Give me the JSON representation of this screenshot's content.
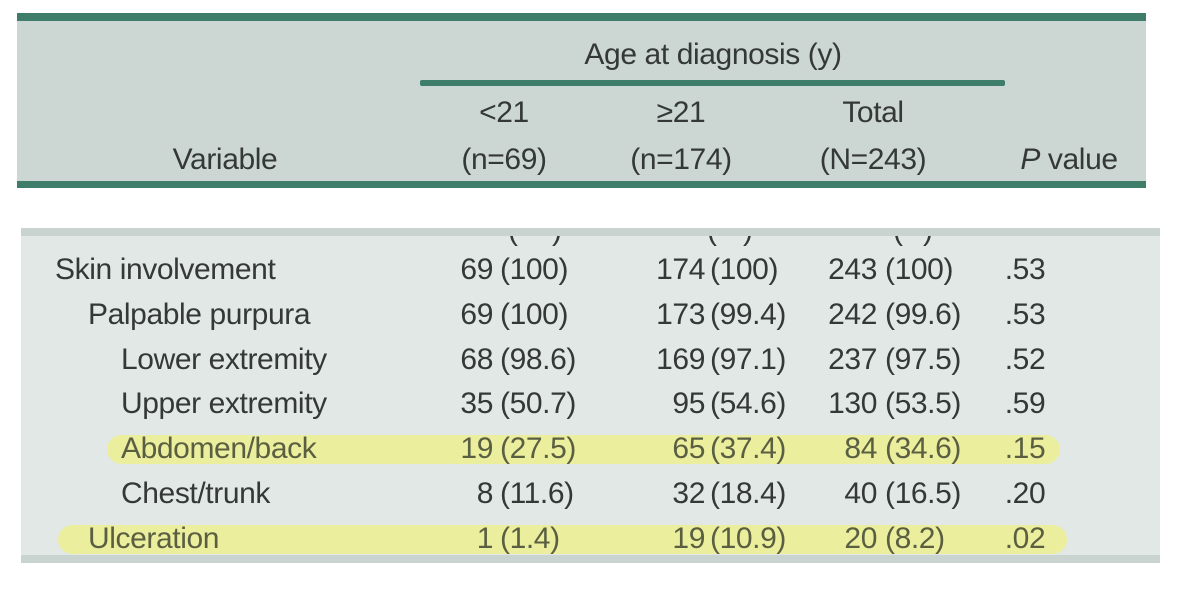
{
  "colors": {
    "accent_teal": "#3d7d69",
    "header_bg": "#ccd6d3",
    "body_bg": "#e1e8e5",
    "edge_strip": "#c9d3d0",
    "highlight_yellow": "#ebee9d",
    "text": "#343836",
    "highlighted_text": "#5a5f42"
  },
  "table": {
    "spanner_label": "Age at diagnosis (y)",
    "variable_header": "Variable",
    "col1": {
      "line1": "<21",
      "line2": "(n=69)"
    },
    "col2": {
      "line1": "≥21",
      "line2": "(n=174)"
    },
    "col3": {
      "line1": "Total",
      "line2": "(N=243)"
    },
    "p_header_italic": "P",
    "p_header_rest": " value",
    "truncated_row": {
      "open": "(",
      "close": ")"
    },
    "rows": [
      {
        "label": "Skin involvement",
        "indent": 0,
        "highlight": false,
        "n1": "69",
        "p1": "(100)",
        "n2": "174",
        "p2": "(100)",
        "n3": "243",
        "p3": "(100)",
        "p": ".53"
      },
      {
        "label": "Palpable purpura",
        "indent": 1,
        "highlight": false,
        "n1": "69",
        "p1": "(100)",
        "n2": "173",
        "p2": "(99.4)",
        "n3": "242",
        "p3": "(99.6)",
        "p": ".53"
      },
      {
        "label": "Lower extremity",
        "indent": 2,
        "highlight": false,
        "n1": "68",
        "p1": "(98.6)",
        "n2": "169",
        "p2": "(97.1)",
        "n3": "237",
        "p3": "(97.5)",
        "p": ".52"
      },
      {
        "label": "Upper extremity",
        "indent": 2,
        "highlight": false,
        "n1": "35",
        "p1": "(50.7)",
        "n2": "95",
        "p2": "(54.6)",
        "n3": "130",
        "p3": "(53.5)",
        "p": ".59"
      },
      {
        "label": "Abdomen/back",
        "indent": 2,
        "highlight": true,
        "n1": "19",
        "p1": "(27.5)",
        "n2": "65",
        "p2": "(37.4)",
        "n3": "84",
        "p3": "(34.6)",
        "p": ".15"
      },
      {
        "label": "Chest/trunk",
        "indent": 2,
        "highlight": false,
        "n1": "8",
        "p1": "(11.6)",
        "n2": "32",
        "p2": "(18.4)",
        "n3": "40",
        "p3": "(16.5)",
        "p": ".20"
      },
      {
        "label": "Ulceration",
        "indent": 1,
        "highlight": true,
        "n1": "1",
        "p1": "(1.4)",
        "n2": "19",
        "p2": "(10.9)",
        "n3": "20",
        "p3": "(8.2)",
        "p": ".02"
      }
    ]
  }
}
